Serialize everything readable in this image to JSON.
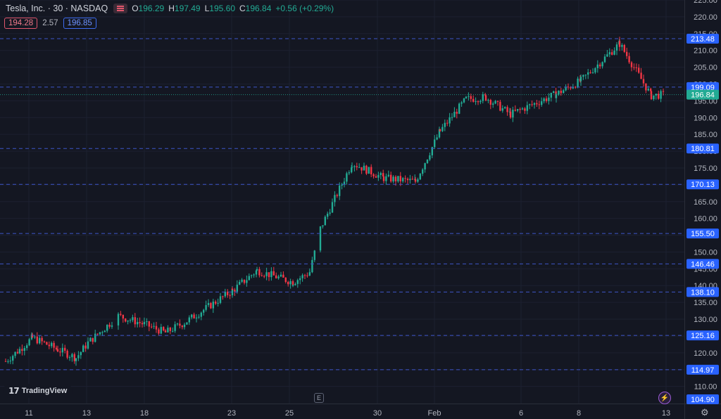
{
  "header": {
    "symbol": "Tesla, Inc. · 30 · NASDAQ",
    "open_label": "O",
    "open": "196.29",
    "high_label": "H",
    "high": "197.49",
    "low_label": "L",
    "low": "195.60",
    "close_label": "C",
    "close": "196.84",
    "change": "+0.56 (+0.29%)",
    "bid": "194.28",
    "spread": "2.57",
    "ask": "196.85",
    "flag_icon": "flag-icon"
  },
  "branding": {
    "logo_text": "TradingView"
  },
  "icons": {
    "events": "E",
    "bolt": "⚡",
    "settings": "⚙"
  },
  "colors": {
    "background": "#141722",
    "up": "#22ab94",
    "down": "#f23645",
    "level_line": "#3d55c8",
    "level_label_bg": "#2962ff",
    "current_price_bg": "#22ab94",
    "axis_text": "#b2b5be"
  },
  "chart_data": {
    "type": "candlestick",
    "interval": "30",
    "x_ticks": [
      "11",
      "13",
      "18",
      "23",
      "25",
      "30",
      "Feb",
      "6",
      "8",
      "13"
    ],
    "y_ticks": [
      110,
      115,
      120,
      125,
      130,
      135,
      140,
      145,
      150,
      155,
      160,
      165,
      170,
      175,
      180,
      185,
      190,
      195,
      200,
      205,
      210,
      215,
      220,
      225
    ],
    "ylim": [
      104.9,
      225
    ],
    "level_lines": [
      213.48,
      199.09,
      180.81,
      170.13,
      155.5,
      146.46,
      138.1,
      125.16,
      114.97
    ],
    "current_price": 196.84,
    "bottom_label": 104.9,
    "close_path": [
      [
        "11",
        117.5
      ],
      [
        "11",
        121.0
      ],
      [
        "11",
        124.5
      ],
      [
        "13",
        121.0
      ],
      [
        "13",
        118.5
      ],
      [
        "13",
        123.0
      ],
      [
        "18",
        131.0
      ],
      [
        "18",
        128.5
      ],
      [
        "18",
        126.0
      ],
      [
        "23",
        129.0
      ],
      [
        "23",
        138.5
      ],
      [
        "23",
        144.5
      ],
      [
        "25",
        141.0
      ],
      [
        "25",
        144.0
      ],
      [
        "30",
        157.0
      ],
      [
        "30",
        176.5
      ],
      [
        "30",
        172.0
      ],
      [
        "Feb",
        171.0
      ],
      [
        "Feb",
        186.0
      ],
      [
        "Feb",
        195.5
      ],
      [
        "6",
        196.0
      ],
      [
        "6",
        191.0
      ],
      [
        "8",
        197.0
      ],
      [
        "8",
        201.0
      ],
      [
        "13",
        212.0
      ],
      [
        "13",
        196.5
      ],
      [
        "13",
        196.84
      ]
    ]
  }
}
